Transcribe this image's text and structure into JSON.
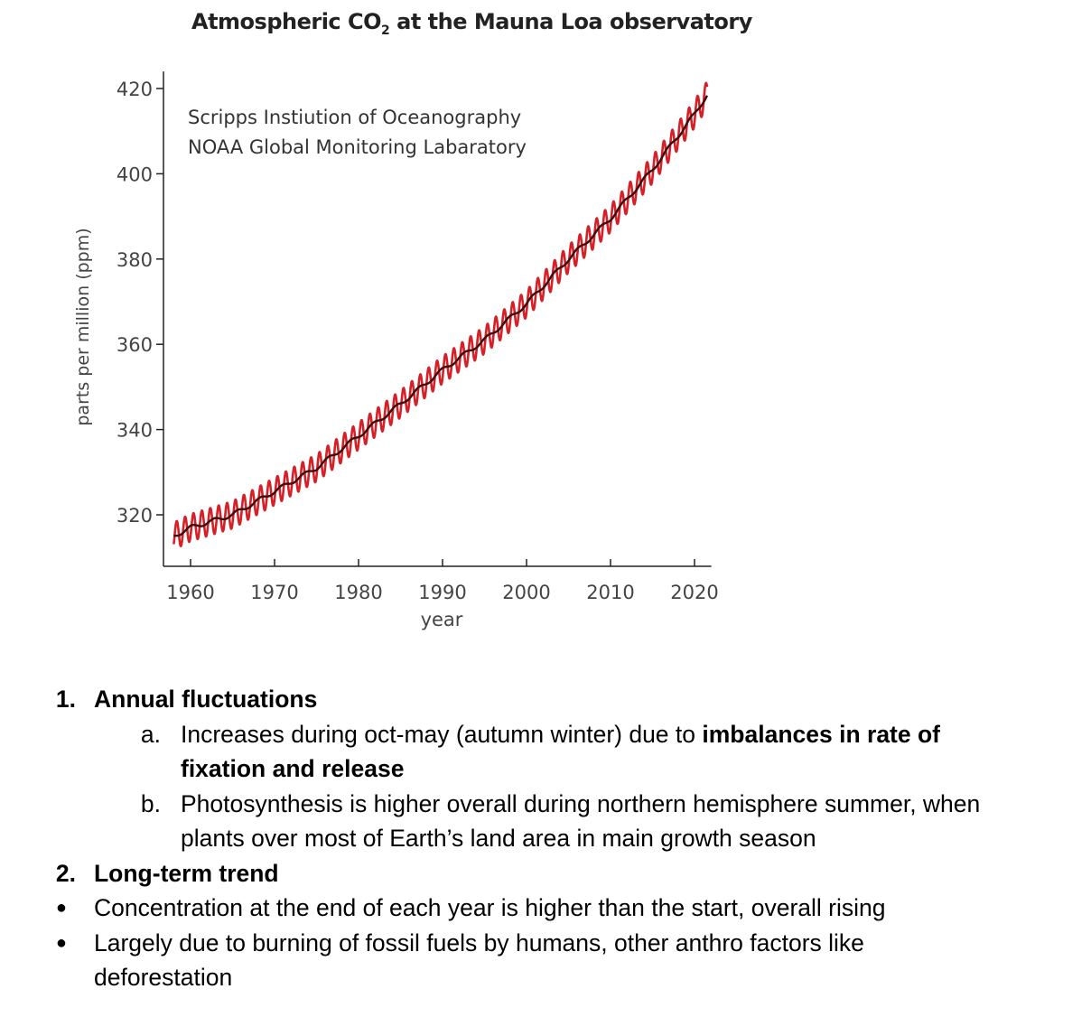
{
  "chart_data": {
    "type": "line",
    "title": "Atmospheric CO",
    "title_subscript": "2",
    "title_suffix": " at the Mauna Loa observatory",
    "annotation_lines": [
      "Scripps Instiution of Oceanography",
      "NOAA Global Monitoring Labaratory"
    ],
    "xlabel": "year",
    "ylabel": "parts per million (ppm)",
    "xlim": [
      1958,
      2022
    ],
    "ylim": [
      310,
      424
    ],
    "xticks": [
      1960,
      1970,
      1980,
      1990,
      2000,
      2010,
      2020
    ],
    "yticks": [
      320,
      340,
      360,
      380,
      400,
      420
    ],
    "grid": false,
    "series": [
      {
        "kind": "monthly",
        "color": "#d62028",
        "seasonal_amplitude_ppm": 3.2,
        "x": [
          1958,
          1960,
          1965,
          1970,
          1975,
          1980,
          1985,
          1990,
          1995,
          2000,
          2005,
          2010,
          2015,
          2020,
          2021.5
        ],
        "y": [
          315,
          317,
          320,
          325.5,
          331,
          338.5,
          346,
          354,
          361,
          369.5,
          380,
          389.5,
          401,
          414,
          418.5
        ]
      },
      {
        "kind": "trend",
        "color": "#3a0f10",
        "x": [
          1958,
          1960,
          1965,
          1970,
          1975,
          1980,
          1985,
          1990,
          1995,
          2000,
          2005,
          2010,
          2015,
          2020,
          2021.5
        ],
        "y": [
          315,
          317,
          320,
          325.5,
          331,
          338.5,
          346,
          354,
          361,
          369.5,
          380,
          389.5,
          401,
          414,
          418.5
        ]
      }
    ]
  },
  "notes": {
    "item1": {
      "marker": "1.",
      "title": "Annual fluctuations"
    },
    "item1a": {
      "marker": "a.",
      "line1_prefix": "Increases during oct-may (autumn winter) due to ",
      "line1_bold": "imbalances in rate of",
      "line2_bold": "fixation and release"
    },
    "item1b": {
      "marker": "b.",
      "line1": "Photosynthesis is higher overall during northern hemisphere summer, when",
      "line2": "plants over most of Earth’s land area in main growth season"
    },
    "item2": {
      "marker": "2.",
      "title": "Long-term trend"
    },
    "bullets": [
      {
        "marker": "●",
        "line1": "Concentration at the end of each year is higher than the start, overall rising"
      },
      {
        "marker": "●",
        "line1": "Largely due to burning of fossil fuels by humans, other anthro factors like",
        "line2": "deforestation"
      }
    ]
  }
}
